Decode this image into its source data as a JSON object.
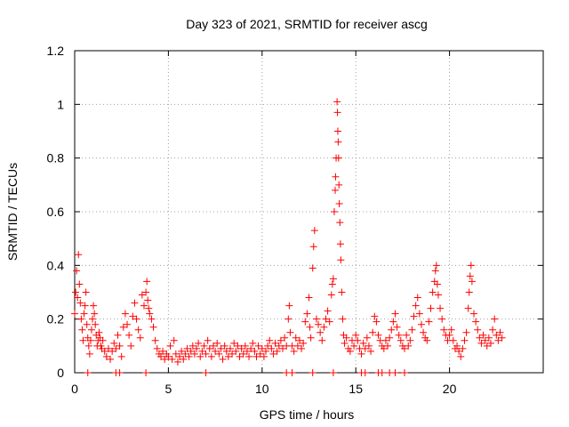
{
  "chart_data": {
    "type": "scatter",
    "title": "Day 323 of 2021, SRMTID for receiver ascg",
    "xlabel": "GPS time / hours",
    "ylabel": "SRMTID / TECUs",
    "xlim": [
      0,
      25
    ],
    "ylim": [
      0,
      1.2
    ],
    "grid": true,
    "x_ticks": [
      0,
      5,
      10,
      15,
      20
    ],
    "y_ticks": [
      0,
      0.2,
      0.4,
      0.6,
      0.8,
      1,
      1.2
    ],
    "x_tick_labels": [
      "0",
      "5",
      "10",
      "15",
      "20"
    ],
    "y_tick_labels": [
      "0",
      "0.2",
      "0.4",
      "0.6",
      "0.8",
      "1",
      "1.2"
    ],
    "marker": "+",
    "color": "#ff0000",
    "series": [
      {
        "name": "SRMTID",
        "points": [
          [
            0.0,
            0.22
          ],
          [
            0.05,
            0.3
          ],
          [
            0.1,
            0.38
          ],
          [
            0.15,
            0.28
          ],
          [
            0.2,
            0.44
          ],
          [
            0.25,
            0.33
          ],
          [
            0.3,
            0.26
          ],
          [
            0.35,
            0.2
          ],
          [
            0.4,
            0.16
          ],
          [
            0.45,
            0.12
          ],
          [
            0.5,
            0.22
          ],
          [
            0.55,
            0.25
          ],
          [
            0.6,
            0.3
          ],
          [
            0.65,
            0.18
          ],
          [
            0.7,
            0.13
          ],
          [
            0.75,
            0.1
          ],
          [
            0.8,
            0.07
          ],
          [
            0.85,
            0.12
          ],
          [
            0.9,
            0.16
          ],
          [
            0.95,
            0.2
          ],
          [
            1.0,
            0.25
          ],
          [
            1.05,
            0.22
          ],
          [
            1.1,
            0.18
          ],
          [
            1.15,
            0.14
          ],
          [
            1.2,
            0.1
          ],
          [
            1.25,
            0.12
          ],
          [
            1.3,
            0.15
          ],
          [
            1.35,
            0.13
          ],
          [
            1.4,
            0.1
          ],
          [
            1.45,
            0.09
          ],
          [
            1.5,
            0.12
          ],
          [
            1.6,
            0.08
          ],
          [
            1.7,
            0.06
          ],
          [
            1.8,
            0.09
          ],
          [
            1.9,
            0.05
          ],
          [
            2.0,
            0.08
          ],
          [
            2.1,
            0.11
          ],
          [
            2.2,
            0.09
          ],
          [
            2.3,
            0.14
          ],
          [
            2.4,
            0.1
          ],
          [
            2.5,
            0.06
          ],
          [
            2.6,
            0.17
          ],
          [
            2.7,
            0.22
          ],
          [
            2.8,
            0.18
          ],
          [
            2.9,
            0.14
          ],
          [
            3.0,
            0.1
          ],
          [
            3.1,
            0.21
          ],
          [
            3.2,
            0.26
          ],
          [
            3.3,
            0.2
          ],
          [
            3.4,
            0.16
          ],
          [
            3.5,
            0.13
          ],
          [
            3.6,
            0.29
          ],
          [
            3.7,
            0.25
          ],
          [
            3.8,
            0.3
          ],
          [
            3.85,
            0.34
          ],
          [
            3.9,
            0.27
          ],
          [
            3.95,
            0.24
          ],
          [
            4.0,
            0.22
          ],
          [
            4.1,
            0.2
          ],
          [
            4.2,
            0.17
          ],
          [
            4.3,
            0.12
          ],
          [
            4.4,
            0.09
          ],
          [
            4.5,
            0.07
          ],
          [
            4.6,
            0.06
          ],
          [
            4.7,
            0.08
          ],
          [
            4.8,
            0.05
          ],
          [
            4.9,
            0.07
          ],
          [
            5.0,
            0.06
          ],
          [
            5.1,
            0.1
          ],
          [
            5.2,
            0.05
          ],
          [
            5.3,
            0.12
          ],
          [
            5.4,
            0.07
          ],
          [
            5.5,
            0.04
          ],
          [
            5.6,
            0.06
          ],
          [
            5.7,
            0.08
          ],
          [
            5.8,
            0.05
          ],
          [
            5.9,
            0.07
          ],
          [
            6.0,
            0.09
          ],
          [
            6.1,
            0.06
          ],
          [
            6.2,
            0.08
          ],
          [
            6.3,
            0.1
          ],
          [
            6.4,
            0.07
          ],
          [
            6.5,
            0.09
          ],
          [
            6.6,
            0.11
          ],
          [
            6.7,
            0.06
          ],
          [
            6.8,
            0.08
          ],
          [
            6.9,
            0.1
          ],
          [
            7.0,
            0.07
          ],
          [
            7.1,
            0.12
          ],
          [
            7.2,
            0.09
          ],
          [
            7.3,
            0.06
          ],
          [
            7.4,
            0.1
          ],
          [
            7.5,
            0.08
          ],
          [
            7.6,
            0.11
          ],
          [
            7.7,
            0.07
          ],
          [
            7.8,
            0.09
          ],
          [
            7.9,
            0.05
          ],
          [
            8.0,
            0.1
          ],
          [
            8.1,
            0.08
          ],
          [
            8.2,
            0.06
          ],
          [
            8.3,
            0.09
          ],
          [
            8.4,
            0.07
          ],
          [
            8.5,
            0.11
          ],
          [
            8.6,
            0.08
          ],
          [
            8.7,
            0.1
          ],
          [
            8.8,
            0.06
          ],
          [
            8.9,
            0.09
          ],
          [
            9.0,
            0.07
          ],
          [
            9.1,
            0.1
          ],
          [
            9.2,
            0.08
          ],
          [
            9.3,
            0.06
          ],
          [
            9.4,
            0.09
          ],
          [
            9.5,
            0.11
          ],
          [
            9.6,
            0.08
          ],
          [
            9.7,
            0.06
          ],
          [
            9.8,
            0.1
          ],
          [
            9.9,
            0.07
          ],
          [
            10.0,
            0.09
          ],
          [
            10.1,
            0.06
          ],
          [
            10.2,
            0.08
          ],
          [
            10.3,
            0.1
          ],
          [
            10.4,
            0.12
          ],
          [
            10.5,
            0.09
          ],
          [
            10.6,
            0.07
          ],
          [
            10.7,
            0.11
          ],
          [
            10.8,
            0.08
          ],
          [
            10.9,
            0.1
          ],
          [
            11.0,
            0.12
          ],
          [
            11.1,
            0.09
          ],
          [
            11.2,
            0.13
          ],
          [
            11.3,
            0.1
          ],
          [
            11.4,
            0.2
          ],
          [
            11.45,
            0.25
          ],
          [
            11.5,
            0.15
          ],
          [
            11.6,
            0.1
          ],
          [
            11.7,
            0.08
          ],
          [
            11.8,
            0.13
          ],
          [
            11.9,
            0.1
          ],
          [
            12.0,
            0.12
          ],
          [
            12.1,
            0.09
          ],
          [
            12.2,
            0.11
          ],
          [
            12.3,
            0.19
          ],
          [
            12.4,
            0.22
          ],
          [
            12.5,
            0.28
          ],
          [
            12.55,
            0.17
          ],
          [
            12.6,
            0.13
          ],
          [
            12.7,
            0.39
          ],
          [
            12.75,
            0.47
          ],
          [
            12.8,
            0.53
          ],
          [
            12.9,
            0.2
          ],
          [
            13.0,
            0.18
          ],
          [
            13.1,
            0.15
          ],
          [
            13.2,
            0.12
          ],
          [
            13.3,
            0.17
          ],
          [
            13.4,
            0.2
          ],
          [
            13.5,
            0.23
          ],
          [
            13.6,
            0.19
          ],
          [
            13.7,
            0.29
          ],
          [
            13.75,
            0.33
          ],
          [
            13.8,
            0.35
          ],
          [
            13.85,
            0.6
          ],
          [
            13.9,
            0.68
          ],
          [
            13.92,
            0.73
          ],
          [
            13.95,
            0.8
          ],
          [
            14.0,
            1.01
          ],
          [
            14.02,
            0.97
          ],
          [
            14.04,
            0.9
          ],
          [
            14.06,
            0.86
          ],
          [
            14.08,
            0.8
          ],
          [
            14.1,
            0.7
          ],
          [
            14.12,
            0.63
          ],
          [
            14.15,
            0.56
          ],
          [
            14.18,
            0.48
          ],
          [
            14.2,
            0.42
          ],
          [
            14.25,
            0.3
          ],
          [
            14.3,
            0.2
          ],
          [
            14.35,
            0.14
          ],
          [
            14.4,
            0.11
          ],
          [
            14.5,
            0.13
          ],
          [
            14.6,
            0.09
          ],
          [
            14.7,
            0.08
          ],
          [
            14.8,
            0.12
          ],
          [
            14.9,
            0.1
          ],
          [
            15.0,
            0.14
          ],
          [
            15.1,
            0.12
          ],
          [
            15.2,
            0.09
          ],
          [
            15.3,
            0.07
          ],
          [
            15.4,
            0.11
          ],
          [
            15.5,
            0.09
          ],
          [
            15.6,
            0.13
          ],
          [
            15.7,
            0.1
          ],
          [
            15.8,
            0.08
          ],
          [
            15.9,
            0.15
          ],
          [
            16.0,
            0.21
          ],
          [
            16.1,
            0.19
          ],
          [
            16.2,
            0.14
          ],
          [
            16.3,
            0.12
          ],
          [
            16.4,
            0.1
          ],
          [
            16.5,
            0.09
          ],
          [
            16.6,
            0.12
          ],
          [
            16.7,
            0.1
          ],
          [
            16.8,
            0.13
          ],
          [
            16.9,
            0.16
          ],
          [
            17.0,
            0.19
          ],
          [
            17.1,
            0.22
          ],
          [
            17.2,
            0.17
          ],
          [
            17.3,
            0.14
          ],
          [
            17.4,
            0.12
          ],
          [
            17.5,
            0.1
          ],
          [
            17.6,
            0.09
          ],
          [
            17.7,
            0.14
          ],
          [
            17.8,
            0.1
          ],
          [
            17.9,
            0.12
          ],
          [
            18.0,
            0.16
          ],
          [
            18.1,
            0.21
          ],
          [
            18.2,
            0.25
          ],
          [
            18.3,
            0.28
          ],
          [
            18.4,
            0.22
          ],
          [
            18.5,
            0.18
          ],
          [
            18.6,
            0.15
          ],
          [
            18.7,
            0.13
          ],
          [
            18.8,
            0.12
          ],
          [
            18.9,
            0.19
          ],
          [
            19.0,
            0.24
          ],
          [
            19.1,
            0.3
          ],
          [
            19.2,
            0.34
          ],
          [
            19.25,
            0.38
          ],
          [
            19.3,
            0.4
          ],
          [
            19.35,
            0.33
          ],
          [
            19.4,
            0.29
          ],
          [
            19.5,
            0.24
          ],
          [
            19.6,
            0.2
          ],
          [
            19.7,
            0.16
          ],
          [
            19.8,
            0.14
          ],
          [
            19.9,
            0.12
          ],
          [
            20.0,
            0.14
          ],
          [
            20.1,
            0.16
          ],
          [
            20.2,
            0.12
          ],
          [
            20.3,
            0.09
          ],
          [
            20.4,
            0.1
          ],
          [
            20.5,
            0.08
          ],
          [
            20.6,
            0.06
          ],
          [
            20.7,
            0.09
          ],
          [
            20.8,
            0.12
          ],
          [
            20.9,
            0.15
          ],
          [
            21.0,
            0.24
          ],
          [
            21.05,
            0.3
          ],
          [
            21.1,
            0.36
          ],
          [
            21.15,
            0.4
          ],
          [
            21.2,
            0.34
          ],
          [
            21.3,
            0.22
          ],
          [
            21.4,
            0.19
          ],
          [
            21.5,
            0.16
          ],
          [
            21.6,
            0.13
          ],
          [
            21.7,
            0.11
          ],
          [
            21.8,
            0.14
          ],
          [
            21.9,
            0.12
          ],
          [
            22.0,
            0.1
          ],
          [
            22.1,
            0.13
          ],
          [
            22.2,
            0.11
          ],
          [
            22.3,
            0.16
          ],
          [
            22.4,
            0.2
          ],
          [
            22.5,
            0.14
          ],
          [
            22.6,
            0.12
          ],
          [
            22.7,
            0.15
          ],
          [
            22.8,
            0.13
          ]
        ],
        "zero_points": [
          0.7,
          2.2,
          2.4,
          3.8,
          7.0,
          11.3,
          11.6,
          12.7,
          13.8,
          15.3,
          15.5,
          16.2,
          16.4,
          16.8,
          17.1,
          17.6
        ]
      }
    ]
  }
}
